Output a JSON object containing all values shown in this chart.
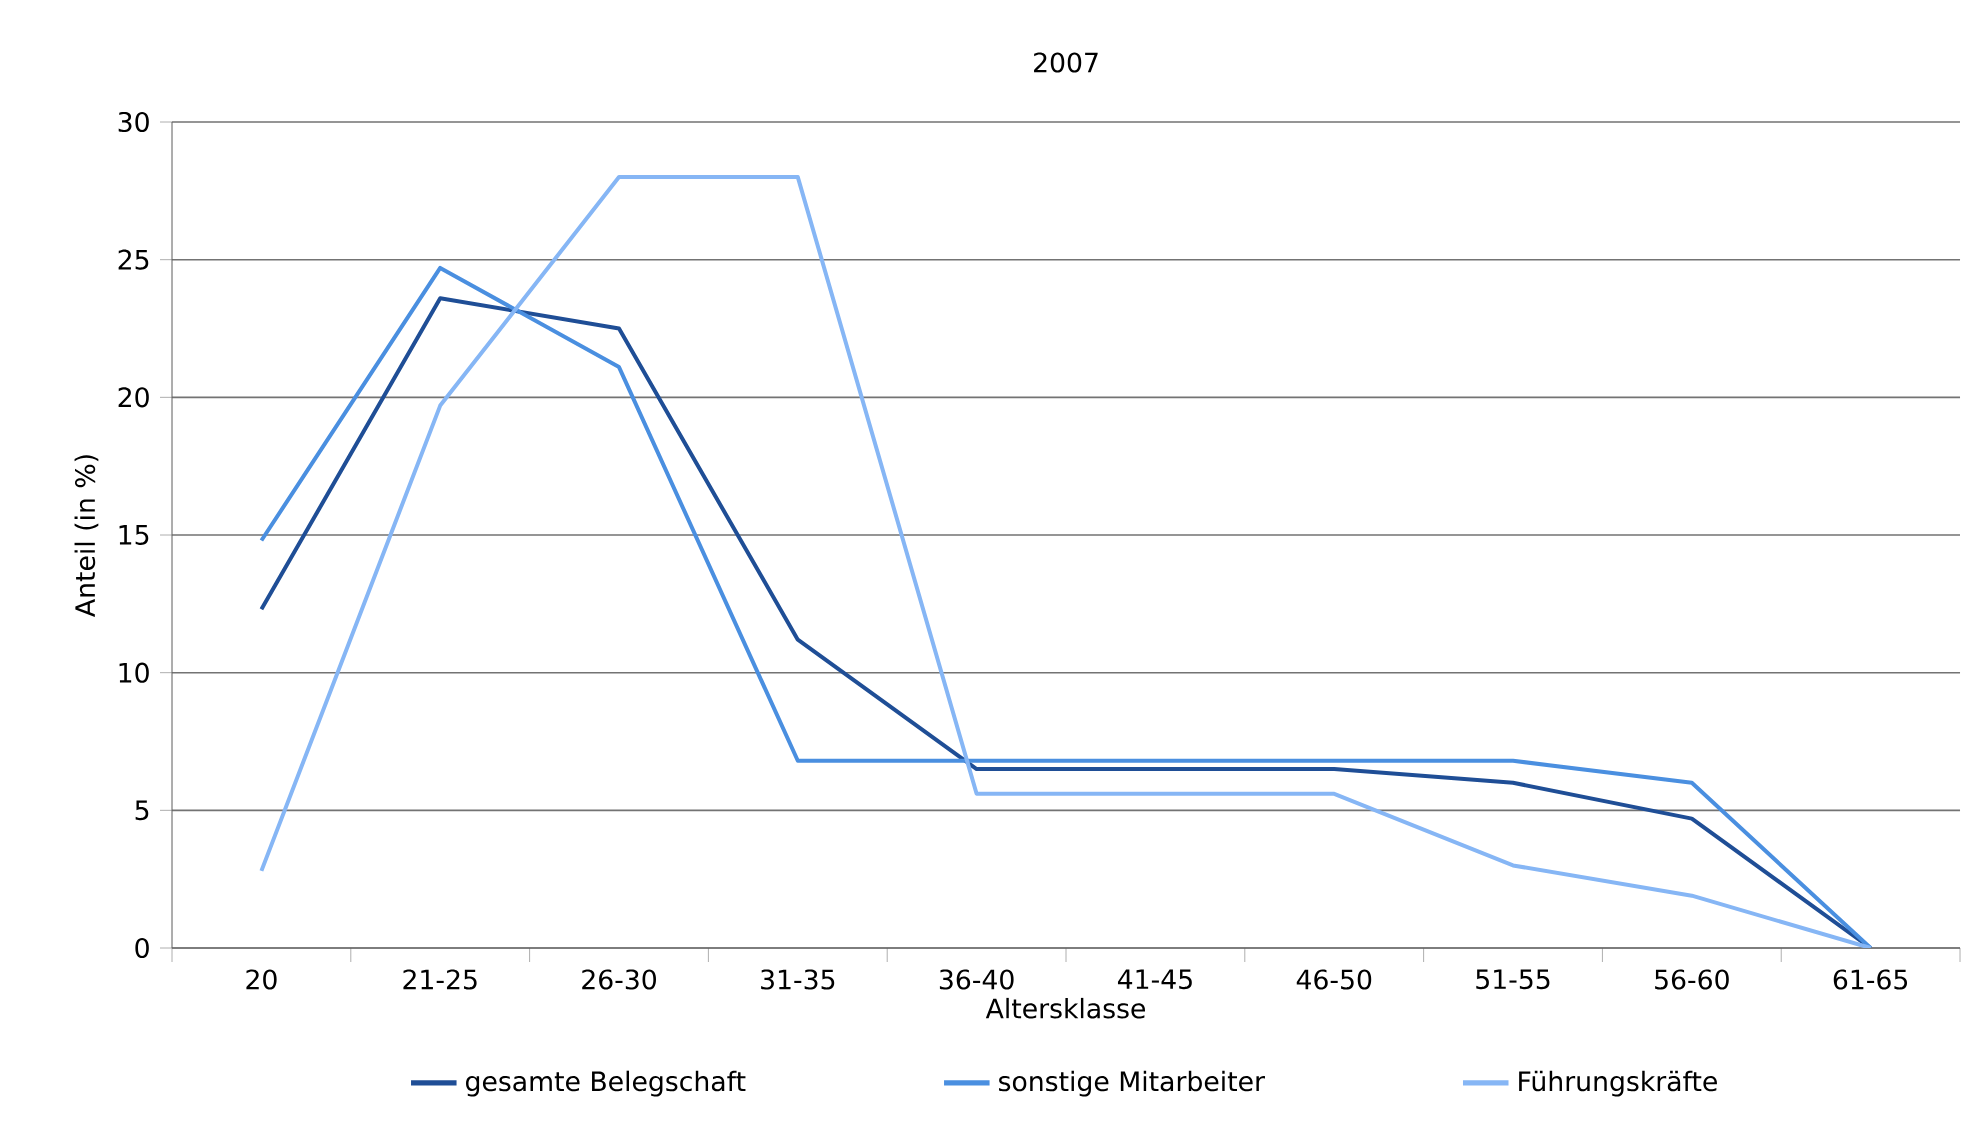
{
  "chart_data": {
    "type": "line",
    "title": "2007",
    "xlabel": "Altersklasse",
    "ylabel": "Anteil (in %)",
    "categories": [
      "20",
      "21-25",
      "26-30",
      "31-35",
      "36-40",
      "41-45",
      "46-50",
      "51-55",
      "56-60",
      "61-65"
    ],
    "series": [
      {
        "name": "gesamte Belegschaft",
        "color": "#1f4e96",
        "values": [
          12.3,
          23.6,
          22.5,
          11.2,
          6.5,
          6.5,
          6.5,
          6.0,
          4.7,
          0
        ]
      },
      {
        "name": "sonstige Mitarbeiter",
        "color": "#4a8fe0",
        "values": [
          14.8,
          24.7,
          21.1,
          6.8,
          6.8,
          6.8,
          6.8,
          6.8,
          6.0,
          0
        ]
      },
      {
        "name": "Führungskräfte",
        "color": "#86b6f5",
        "values": [
          2.8,
          19.7,
          28.0,
          28.0,
          5.6,
          5.6,
          5.6,
          3.0,
          1.9,
          0
        ]
      }
    ],
    "ylim": [
      0,
      30
    ],
    "yticks": [
      0,
      5,
      10,
      15,
      20,
      25,
      30
    ],
    "grid": "y",
    "legend": "bottom",
    "marker": "none",
    "line_style": "solid"
  }
}
